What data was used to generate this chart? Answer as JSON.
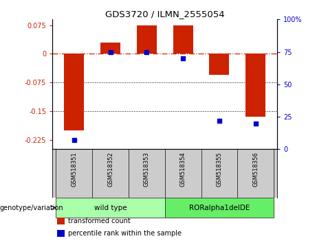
{
  "title": "GDS3720 / ILMN_2555054",
  "samples": [
    "GSM518351",
    "GSM518352",
    "GSM518353",
    "GSM518354",
    "GSM518355",
    "GSM518356"
  ],
  "transformed_count": [
    -0.2,
    0.03,
    0.075,
    0.075,
    -0.055,
    -0.165
  ],
  "percentile_rank": [
    7,
    75,
    75,
    70,
    22,
    20
  ],
  "ylim_left": [
    -0.25,
    0.09
  ],
  "ylim_right": [
    0,
    100
  ],
  "yticks_left": [
    0.075,
    0,
    -0.075,
    -0.15,
    -0.225
  ],
  "yticks_right": [
    100,
    75,
    50,
    25,
    0
  ],
  "bar_color": "#cc2200",
  "dot_color": "#0000cc",
  "zero_line_color": "#cc2200",
  "dotted_line_color": "#000000",
  "groups": [
    {
      "label": "wild type",
      "samples": [
        0,
        1,
        2
      ],
      "color": "#aaffaa"
    },
    {
      "label": "RORalpha1delDE",
      "samples": [
        3,
        4,
        5
      ],
      "color": "#66ee66"
    }
  ],
  "group_label": "genotype/variation",
  "legend_items": [
    {
      "label": "transformed count",
      "color": "#cc2200"
    },
    {
      "label": "percentile rank within the sample",
      "color": "#0000cc"
    }
  ],
  "bar_width": 0.55,
  "background_color": "#ffffff",
  "sample_bg_color": "#cccccc"
}
